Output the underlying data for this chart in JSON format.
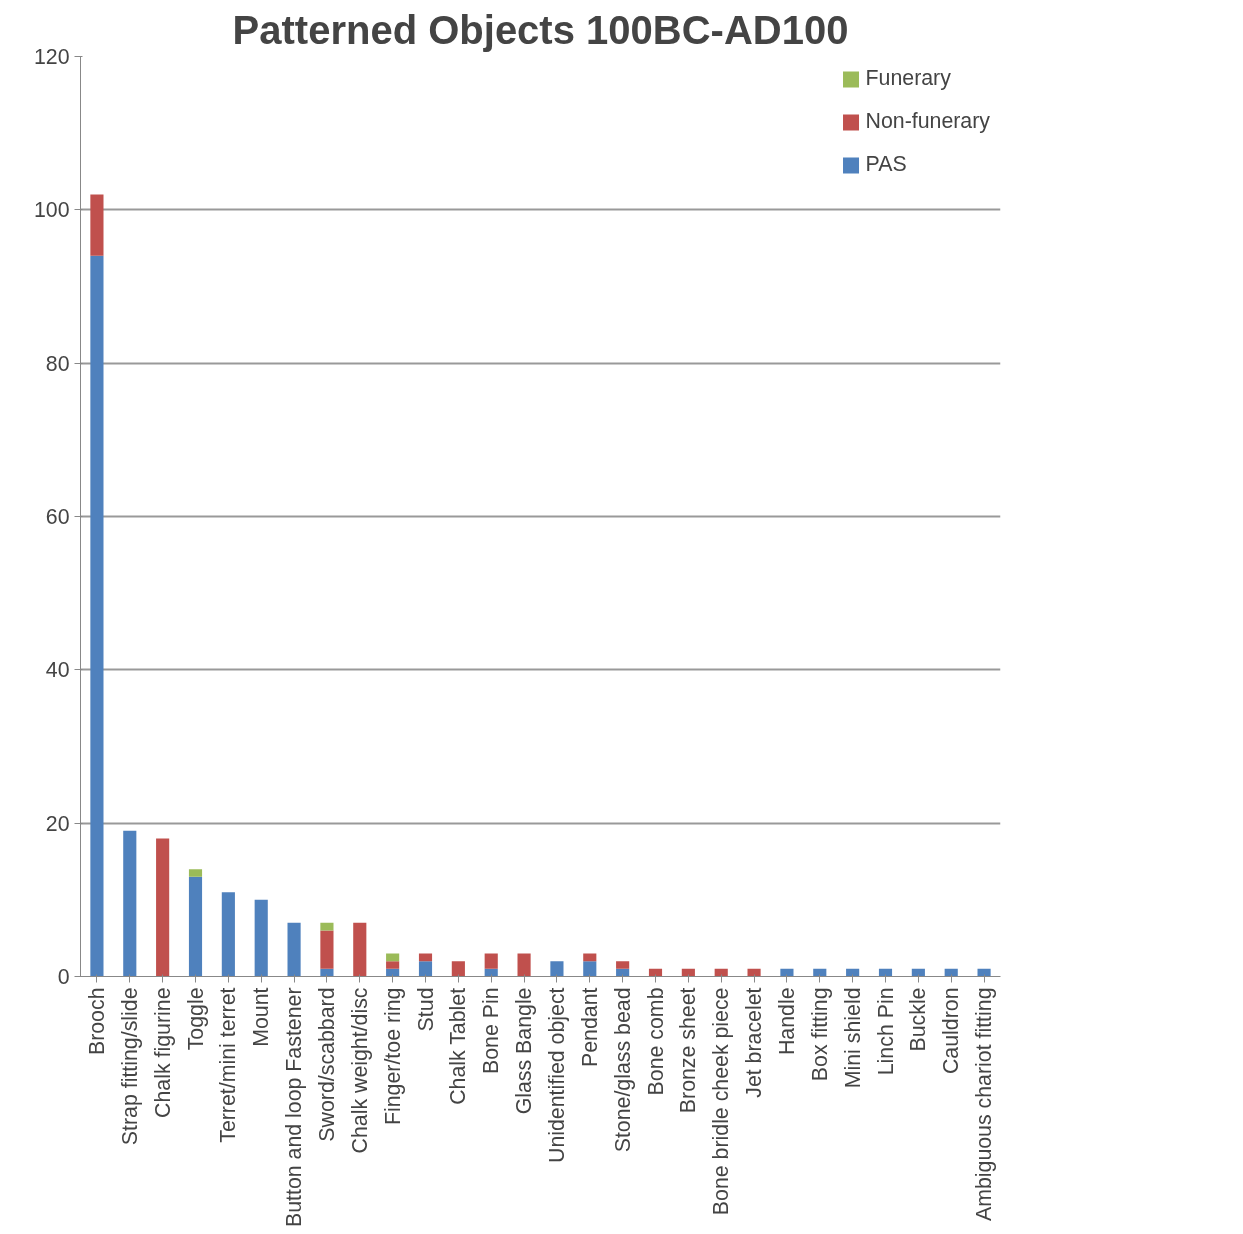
{
  "chart_data": {
    "type": "bar",
    "title": "Patterned Objects 100BC-AD100",
    "stacked": true,
    "grid": "y",
    "legend": "top right",
    "categories": [
      "Brooch",
      "Strap fitting/slide",
      "Chalk figurine",
      "Toggle",
      "Terret/mini terret",
      "Mount",
      "Button and loop Fastener",
      "Sword/scabbard",
      "Chalk weight/disc",
      "Finger/toe ring",
      "Stud",
      "Chalk Tablet",
      "Bone Pin",
      "Glass Bangle",
      "Unidentified object",
      "Pendant",
      "Stone/glass bead",
      "Bone comb",
      "Bronze sheet",
      "Bone bridle cheek piece",
      "Jet bracelet",
      "Handle",
      "Box fitting",
      "Mini shield",
      "Linch Pin",
      "Buckle",
      "Cauldron",
      "Ambiguous chariot fitting"
    ],
    "series": [
      {
        "name": "PAS",
        "color": "#4f81bd",
        "values": [
          94,
          19,
          0,
          13,
          11,
          10,
          7,
          1,
          0,
          1,
          2,
          0,
          1,
          0,
          2,
          2,
          1,
          0,
          0,
          0,
          0,
          1,
          1,
          1,
          1,
          1,
          1,
          1
        ]
      },
      {
        "name": "Non-funerary",
        "color": "#c0504d",
        "values": [
          8,
          0,
          18,
          0,
          0,
          0,
          0,
          5,
          7,
          1,
          1,
          2,
          2,
          3,
          0,
          1,
          1,
          1,
          1,
          1,
          1,
          0,
          0,
          0,
          0,
          0,
          0,
          0
        ]
      },
      {
        "name": "Funerary",
        "color": "#9bbb59",
        "values": [
          0,
          0,
          0,
          1,
          0,
          0,
          0,
          1,
          0,
          1,
          0,
          0,
          0,
          0,
          0,
          0,
          0,
          0,
          0,
          0,
          0,
          0,
          0,
          0,
          0,
          0,
          0,
          0
        ]
      }
    ],
    "ylim": [
      0,
      120
    ],
    "yticks": [
      0,
      20,
      40,
      60,
      80,
      100,
      120
    ]
  }
}
